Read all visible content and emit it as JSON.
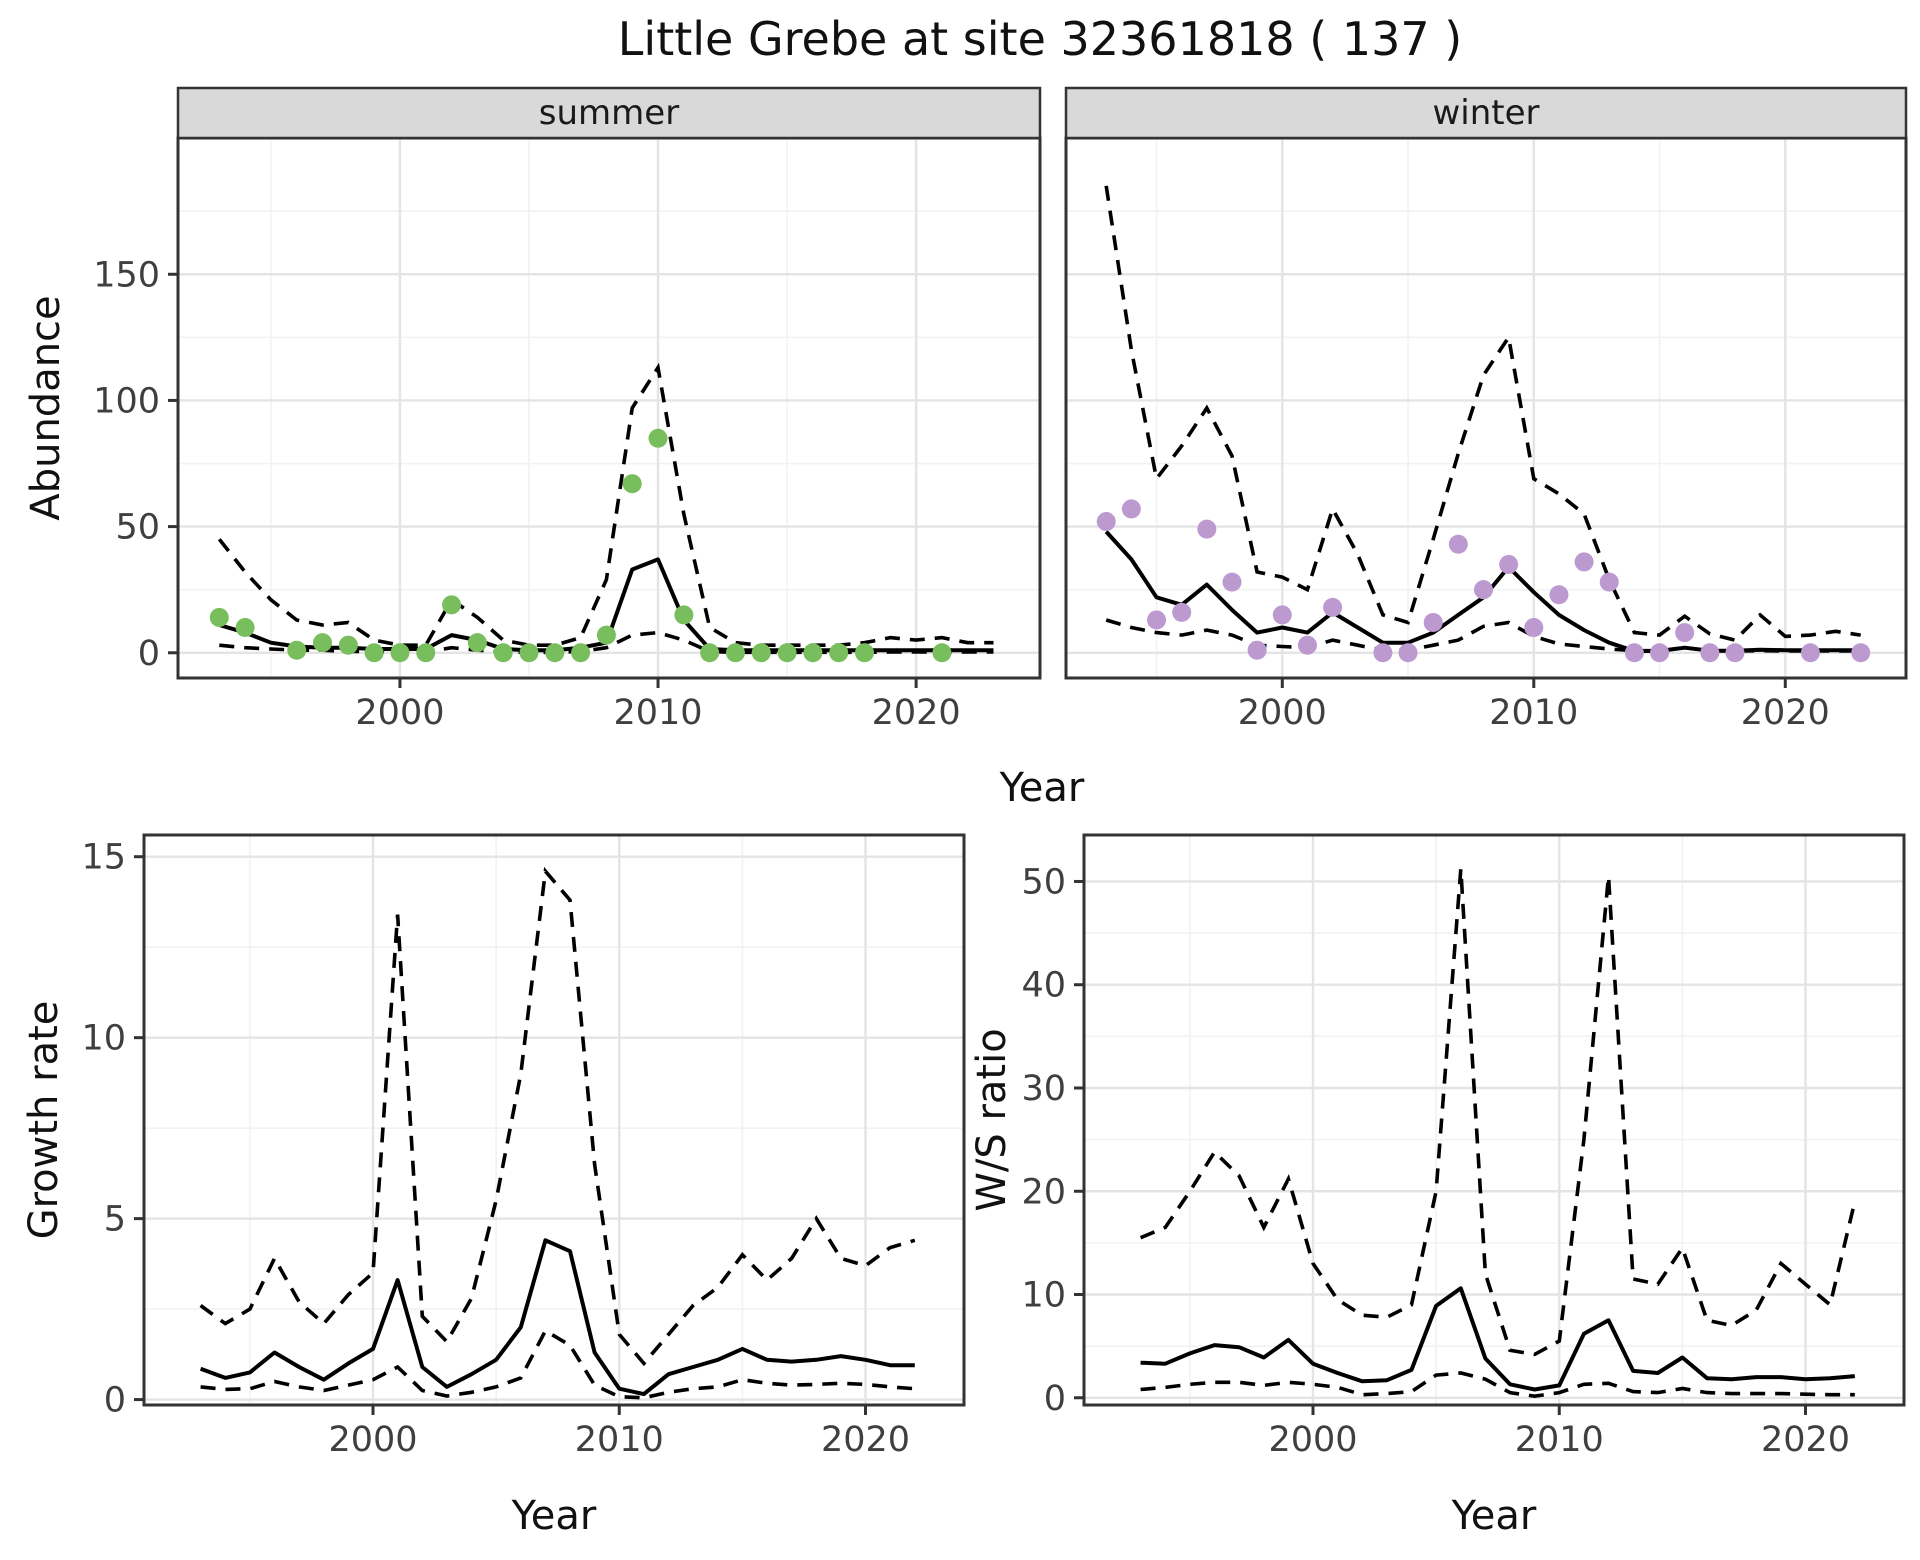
{
  "title": "Little Grebe at site 32361818 ( 137 )",
  "colors": {
    "summer_point": "#78BE5C",
    "winter_point": "#BC99CF",
    "line": "#000000",
    "grid_major": "#E4E4E4",
    "grid_minor": "#F2F2F2",
    "strip_bg": "#D9D9D9",
    "panel_border": "#333333",
    "tick_label": "#3F3F3F"
  },
  "chart_data": [
    {
      "id": "summer",
      "type": "line",
      "facet": "summer",
      "xlabel": "Year",
      "ylabel": "Abundance",
      "legend": "none",
      "grid": "on",
      "xlim": [
        1991.4,
        2024.8
      ],
      "ylim": [
        -10,
        204
      ],
      "x_ticks": [
        2000,
        2010,
        2020
      ],
      "x_minor": [
        1995,
        2005,
        2015
      ],
      "y_ticks": [
        0,
        50,
        100,
        150
      ],
      "y_minor": [
        25,
        75,
        125,
        175
      ],
      "years": [
        1993,
        1994,
        1995,
        1996,
        1997,
        1998,
        1999,
        2000,
        2001,
        2002,
        2003,
        2004,
        2005,
        2006,
        2007,
        2008,
        2009,
        2010,
        2011,
        2012,
        2013,
        2014,
        2015,
        2016,
        2017,
        2018,
        2019,
        2020,
        2021,
        2022,
        2023
      ],
      "fit": [
        11,
        8,
        4,
        2.5,
        2,
        2,
        1.5,
        1.5,
        1.5,
        7,
        5,
        1.5,
        1,
        1,
        2,
        4,
        33,
        37,
        13,
        1.5,
        1,
        1,
        1,
        1,
        1,
        1,
        1,
        1,
        1,
        1,
        1
      ],
      "upper": [
        45,
        32,
        21,
        13,
        11,
        12,
        5,
        3,
        3,
        21,
        14,
        5,
        3,
        3,
        6,
        29,
        97,
        113,
        55,
        10,
        4,
        3,
        3,
        3,
        3,
        4,
        6,
        5,
        6,
        4,
        4
      ],
      "lower": [
        3,
        2,
        1.5,
        1,
        1,
        0.5,
        0.5,
        0.3,
        0.3,
        2,
        1,
        0.3,
        0.2,
        0.2,
        0.5,
        2,
        7,
        8,
        5,
        0.5,
        0.2,
        0.2,
        0.2,
        0.2,
        0.2,
        0.2,
        0.3,
        0.3,
        0.3,
        0.3,
        0.3
      ],
      "observed": [
        [
          1993,
          14
        ],
        [
          1994,
          10
        ],
        [
          1996,
          1
        ],
        [
          1997,
          4
        ],
        [
          1998,
          3
        ],
        [
          1999,
          0
        ],
        [
          2000,
          0
        ],
        [
          2001,
          0
        ],
        [
          2002,
          19
        ],
        [
          2003,
          4
        ],
        [
          2004,
          0
        ],
        [
          2005,
          0
        ],
        [
          2006,
          0
        ],
        [
          2007,
          0
        ],
        [
          2008,
          7
        ],
        [
          2009,
          67
        ],
        [
          2010,
          85
        ],
        [
          2011,
          15
        ],
        [
          2012,
          0
        ],
        [
          2013,
          0
        ],
        [
          2014,
          0
        ],
        [
          2015,
          0
        ],
        [
          2016,
          0
        ],
        [
          2017,
          0
        ],
        [
          2018,
          0
        ],
        [
          2021,
          0
        ]
      ],
      "point_color_key": "summer_point"
    },
    {
      "id": "winter",
      "type": "line",
      "facet": "winter",
      "xlabel": "Year",
      "ylabel": "Abundance",
      "legend": "none",
      "grid": "on",
      "xlim": [
        1991.4,
        2024.8
      ],
      "ylim": [
        -10,
        204
      ],
      "x_ticks": [
        2000,
        2010,
        2020
      ],
      "x_minor": [
        1995,
        2005,
        2015
      ],
      "y_ticks": [
        0,
        50,
        100,
        150
      ],
      "y_minor": [
        25,
        75,
        125,
        175
      ],
      "years": [
        1993,
        1994,
        1995,
        1996,
        1997,
        1998,
        1999,
        2000,
        2001,
        2002,
        2003,
        2004,
        2005,
        2006,
        2007,
        2008,
        2009,
        2010,
        2011,
        2012,
        2013,
        2014,
        2015,
        2016,
        2017,
        2018,
        2019,
        2020,
        2021,
        2022,
        2023
      ],
      "fit": [
        48,
        37,
        22,
        19,
        27,
        17,
        8,
        10,
        8,
        16,
        10,
        4,
        4,
        8,
        15,
        22,
        34,
        24,
        15,
        9,
        4,
        0.7,
        0.7,
        2,
        0.8,
        0.8,
        1.2,
        1,
        1,
        1,
        1
      ],
      "upper": [
        185,
        120,
        69,
        82,
        97,
        78,
        32,
        30,
        25,
        57,
        39,
        15,
        12,
        45,
        79,
        110,
        125,
        69,
        63,
        55,
        29,
        8,
        7,
        14.5,
        7.5,
        5,
        15,
        6.5,
        7,
        8.5,
        7
      ],
      "lower": [
        13,
        10,
        8,
        7,
        9,
        7,
        3,
        2.5,
        2,
        5,
        3,
        1,
        1,
        3,
        5,
        10.5,
        12,
        6.5,
        3.5,
        2.5,
        1.5,
        0.8,
        0.8,
        2,
        0.8,
        0.7,
        0.8,
        0.7,
        0.7,
        0.7,
        0.7
      ],
      "observed": [
        [
          1993,
          52
        ],
        [
          1994,
          57
        ],
        [
          1995,
          13
        ],
        [
          1996,
          16
        ],
        [
          1997,
          49
        ],
        [
          1998,
          28
        ],
        [
          1999,
          1
        ],
        [
          2000,
          15
        ],
        [
          2001,
          3
        ],
        [
          2002,
          18
        ],
        [
          2004,
          0
        ],
        [
          2005,
          0
        ],
        [
          2006,
          12
        ],
        [
          2007,
          43
        ],
        [
          2008,
          25
        ],
        [
          2009,
          35
        ],
        [
          2010,
          10
        ],
        [
          2011,
          23
        ],
        [
          2012,
          36
        ],
        [
          2013,
          28
        ],
        [
          2014,
          0
        ],
        [
          2015,
          0
        ],
        [
          2016,
          8
        ],
        [
          2017,
          0
        ],
        [
          2018,
          0
        ],
        [
          2021,
          0
        ],
        [
          2023,
          0
        ]
      ],
      "point_color_key": "winter_point"
    },
    {
      "id": "growth",
      "type": "line",
      "facet": null,
      "xlabel": "Year",
      "ylabel": "Growth rate",
      "legend": "none",
      "grid": "on",
      "xlim": [
        1990.7,
        2024.0
      ],
      "ylim": [
        -0.15,
        15.6
      ],
      "x_ticks": [
        2000,
        2010,
        2020
      ],
      "x_minor": [
        1995,
        2005,
        2015
      ],
      "y_ticks": [
        0,
        5,
        10,
        15
      ],
      "y_minor": [
        2.5,
        7.5,
        12.5
      ],
      "years": [
        1993,
        1994,
        1995,
        1996,
        1997,
        1998,
        1999,
        2000,
        2001,
        2002,
        2003,
        2004,
        2005,
        2006,
        2007,
        2008,
        2009,
        2010,
        2011,
        2012,
        2013,
        2014,
        2015,
        2016,
        2017,
        2018,
        2019,
        2020,
        2021,
        2022
      ],
      "fit": [
        0.85,
        0.6,
        0.75,
        1.3,
        0.9,
        0.55,
        1.0,
        1.4,
        3.3,
        0.9,
        0.35,
        0.7,
        1.1,
        2.0,
        4.4,
        4.1,
        1.3,
        0.3,
        0.15,
        0.7,
        0.9,
        1.1,
        1.4,
        1.1,
        1.05,
        1.1,
        1.2,
        1.1,
        0.95,
        0.95
      ],
      "upper": [
        2.6,
        2.1,
        2.5,
        3.9,
        2.7,
        2.1,
        2.9,
        3.5,
        13.4,
        2.3,
        1.6,
        2.8,
        5.5,
        9.0,
        14.6,
        13.8,
        6.5,
        1.8,
        1.0,
        1.8,
        2.6,
        3.1,
        4.0,
        3.3,
        3.9,
        5.0,
        3.9,
        3.7,
        4.2,
        4.4
      ],
      "lower": [
        0.35,
        0.28,
        0.3,
        0.5,
        0.35,
        0.25,
        0.4,
        0.55,
        0.9,
        0.25,
        0.1,
        0.2,
        0.35,
        0.6,
        1.9,
        1.5,
        0.4,
        0.08,
        0.05,
        0.2,
        0.3,
        0.35,
        0.55,
        0.45,
        0.4,
        0.42,
        0.45,
        0.42,
        0.35,
        0.3
      ],
      "observed": [],
      "point_color_key": null
    },
    {
      "id": "ws",
      "type": "line",
      "facet": null,
      "xlabel": "Year",
      "ylabel": "W/S ratio",
      "legend": "none",
      "grid": "on",
      "xlim": [
        1990.7,
        2024.0
      ],
      "ylim": [
        -0.7,
        54.5
      ],
      "x_ticks": [
        2000,
        2010,
        2020
      ],
      "x_minor": [
        1995,
        2005,
        2015
      ],
      "y_ticks": [
        0,
        10,
        20,
        30,
        40,
        50
      ],
      "y_minor": [
        5,
        15,
        25,
        35,
        45
      ],
      "years": [
        1993,
        1994,
        1995,
        1996,
        1997,
        1998,
        1999,
        2000,
        2001,
        2002,
        2003,
        2004,
        2005,
        2006,
        2007,
        2008,
        2009,
        2010,
        2011,
        2012,
        2013,
        2014,
        2015,
        2016,
        2017,
        2018,
        2019,
        2020,
        2021,
        2022
      ],
      "fit": [
        3.4,
        3.3,
        4.3,
        5.1,
        4.9,
        3.9,
        5.6,
        3.3,
        2.4,
        1.6,
        1.7,
        2.7,
        8.9,
        10.6,
        3.8,
        1.3,
        0.8,
        1.2,
        6.2,
        7.5,
        2.6,
        2.4,
        3.9,
        1.9,
        1.8,
        2.0,
        2.0,
        1.8,
        1.9,
        2.1
      ],
      "upper": [
        15.5,
        16.5,
        20,
        23.8,
        21.5,
        16.5,
        21.2,
        13,
        9.5,
        8,
        7.8,
        9,
        20,
        51.2,
        12,
        4.6,
        4.2,
        5.5,
        25,
        50.5,
        11.5,
        11,
        14.5,
        7.5,
        7,
        8.5,
        13,
        11,
        9,
        19
      ],
      "lower": [
        0.8,
        1.0,
        1.3,
        1.5,
        1.5,
        1.2,
        1.5,
        1.3,
        1.0,
        0.3,
        0.4,
        0.6,
        2.2,
        2.4,
        1.8,
        0.5,
        0.15,
        0.5,
        1.3,
        1.4,
        0.6,
        0.5,
        0.9,
        0.5,
        0.4,
        0.4,
        0.4,
        0.35,
        0.3,
        0.3
      ],
      "observed": [],
      "point_color_key": null
    }
  ]
}
